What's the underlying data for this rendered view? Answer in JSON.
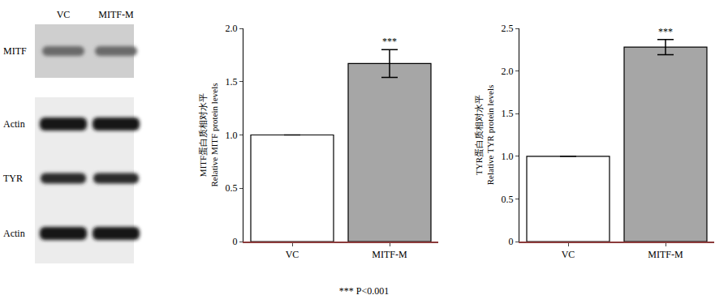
{
  "blot": {
    "lanes": [
      "VC",
      "MITF-M"
    ],
    "rows": [
      "MITF",
      "Actin",
      "TYR",
      "Actin"
    ]
  },
  "chart_data": [
    {
      "type": "bar",
      "categories": [
        "VC",
        "MITF-M"
      ],
      "values": [
        1.0,
        1.67
      ],
      "errors": [
        0,
        0.13
      ],
      "colors": [
        "#ffffff",
        "#a6a6a6"
      ],
      "ylabel": [
        "MITF蛋白质相对水平",
        "Relative MITF protein levels"
      ],
      "ylim": [
        0,
        2.0
      ],
      "yticks": [
        0,
        0.5,
        {
          "value": 1,
          "label": "1.0"
        },
        1.5,
        {
          "value": 2,
          "label": "2.0"
        }
      ],
      "annotations": [
        {
          "category": "MITF-M",
          "text": "***"
        }
      ],
      "grid": false
    },
    {
      "type": "bar",
      "categories": [
        "VC",
        "MITF-M"
      ],
      "values": [
        1.0,
        2.28
      ],
      "errors": [
        0,
        0.09
      ],
      "colors": [
        "#ffffff",
        "#a6a6a6"
      ],
      "ylabel": [
        "TYR蛋白质相对水平",
        "Relative TYR protein levels"
      ],
      "ylim": [
        0,
        2.5
      ],
      "yticks": [
        0,
        0.5,
        {
          "value": 1,
          "label": "1.0"
        },
        1.5,
        {
          "value": 2,
          "label": "2.0"
        },
        2.5
      ],
      "annotations": [
        {
          "category": "MITF-M",
          "text": "***"
        }
      ],
      "grid": false
    }
  ],
  "footnote": "*** P<0.001"
}
